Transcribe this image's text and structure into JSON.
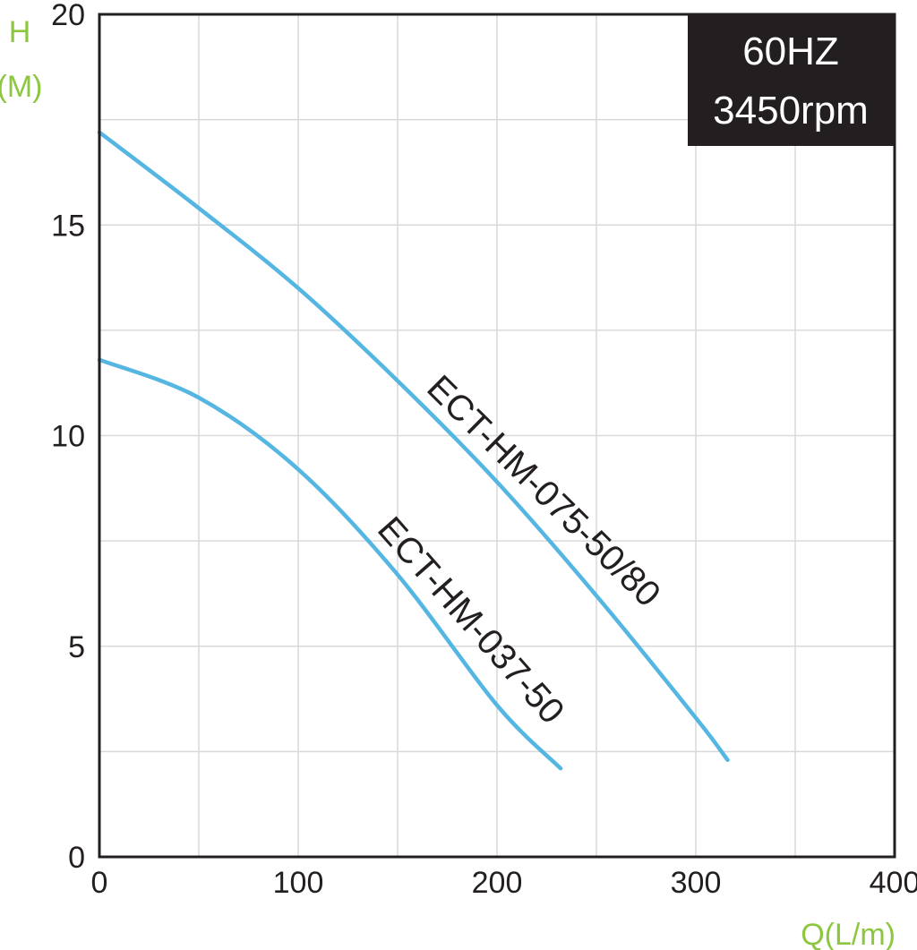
{
  "chart_data": {
    "type": "line",
    "xlabel": "Q(L/m)",
    "ylabel_line1": "H",
    "ylabel_line2": "(M)",
    "xlim": [
      0,
      400
    ],
    "ylim": [
      0,
      20
    ],
    "xticks": [
      0,
      100,
      200,
      300,
      400
    ],
    "yticks": [
      0,
      5,
      10,
      15,
      20
    ],
    "grid": true,
    "badge_line1": "60HZ",
    "badge_line2": "3450rpm",
    "badge_position": "top-right",
    "series": [
      {
        "name": "ECT-HM-075-50/80",
        "x": [
          0,
          50,
          100,
          150,
          200,
          250,
          300,
          316
        ],
        "y": [
          17.2,
          15.4,
          13.5,
          11.3,
          8.9,
          6.2,
          3.3,
          2.3
        ]
      },
      {
        "name": "ECT-HM-037-50",
        "x": [
          0,
          50,
          100,
          150,
          200,
          232
        ],
        "y": [
          11.8,
          10.9,
          9.2,
          6.7,
          3.6,
          2.1
        ]
      }
    ],
    "colors": {
      "line": "#55b6e2",
      "grid": "#d9d9d9",
      "frame": "#231f20",
      "axis_label": "#8dc63f",
      "badge_bg": "#231f20"
    }
  }
}
